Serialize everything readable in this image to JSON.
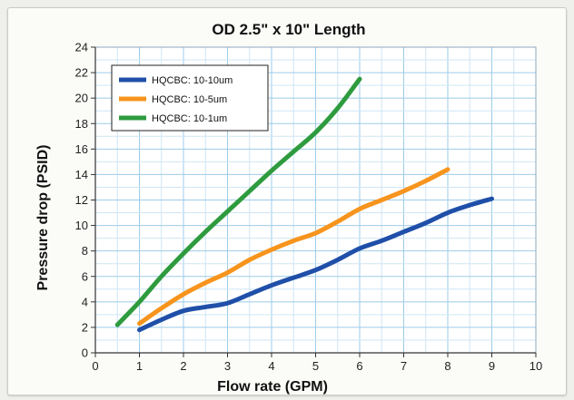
{
  "chart_data": {
    "type": "line",
    "title": "OD 2.5\" x 10\" Length",
    "xlabel": "Flow rate (GPM)",
    "ylabel": "Pressure drop (PSID)",
    "xlim": [
      0,
      10
    ],
    "ylim": [
      0,
      24
    ],
    "xticks": [
      0,
      1,
      2,
      3,
      4,
      5,
      6,
      7,
      8,
      9,
      10
    ],
    "yticks": [
      0,
      2,
      4,
      6,
      8,
      10,
      12,
      14,
      16,
      18,
      20,
      22,
      24
    ],
    "grid": true,
    "legend_position": "top-left",
    "series": [
      {
        "name": "HQCBC: 10-10um",
        "color": "#1f4fa8",
        "x": [
          1,
          1.5,
          2,
          2.5,
          3,
          3.5,
          4,
          4.5,
          5,
          5.5,
          6,
          6.5,
          7,
          7.5,
          8,
          8.5,
          9
        ],
        "y": [
          1.8,
          2.6,
          3.3,
          3.6,
          3.9,
          4.6,
          5.3,
          5.9,
          6.5,
          7.3,
          8.2,
          8.8,
          9.5,
          10.2,
          11.0,
          11.6,
          12.1
        ]
      },
      {
        "name": "HQCBC: 10-5um",
        "color": "#f7941d",
        "x": [
          1,
          1.5,
          2,
          2.5,
          3,
          3.5,
          4,
          4.5,
          5,
          5.5,
          6,
          6.5,
          7,
          7.5,
          8
        ],
        "y": [
          2.3,
          3.5,
          4.6,
          5.5,
          6.3,
          7.3,
          8.1,
          8.8,
          9.4,
          10.3,
          11.3,
          12.0,
          12.7,
          13.5,
          14.4
        ]
      },
      {
        "name": "HQCBC: 10-1um",
        "color": "#2e9b3e",
        "x": [
          0.5,
          1,
          1.5,
          2,
          2.5,
          3,
          3.5,
          4,
          4.5,
          5,
          5.5,
          6
        ],
        "y": [
          2.2,
          4.0,
          6.0,
          7.8,
          9.5,
          11.1,
          12.7,
          14.3,
          15.8,
          17.3,
          19.2,
          21.5
        ]
      }
    ]
  }
}
